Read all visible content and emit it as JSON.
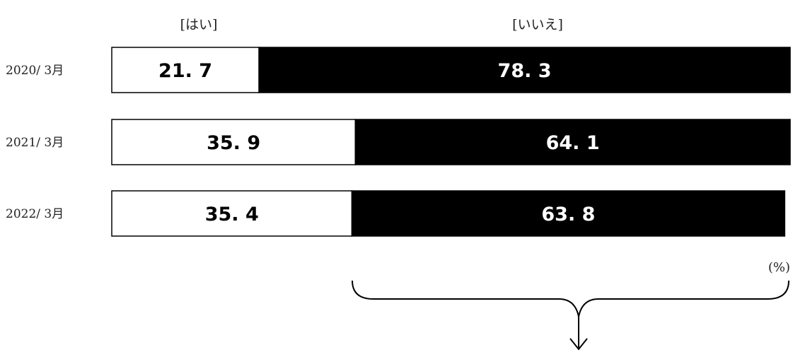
{
  "chart_data": {
    "type": "bar",
    "orientation": "horizontal",
    "stacked": true,
    "unit": "(%)",
    "categories": [
      "2020/ 3月",
      "2021/ 3月",
      "2022/ 3月"
    ],
    "series": [
      {
        "name": "[はい]",
        "values": [
          21.7,
          35.9,
          35.4
        ],
        "fill": "#ffffff",
        "text_color": "#000000"
      },
      {
        "name": "[いいえ]",
        "values": [
          78.3,
          64.1,
          63.8
        ],
        "fill": "#000000",
        "text_color": "#ffffff"
      }
    ],
    "value_labels": [
      [
        "21. 7",
        "35. 9",
        "35. 4"
      ],
      [
        "78. 3",
        "64. 1",
        "63. 8"
      ]
    ],
    "xlim": [
      0,
      100
    ],
    "grid": false,
    "legend": "top"
  },
  "colors": {
    "outline": "#000000",
    "brace": "#000000"
  }
}
